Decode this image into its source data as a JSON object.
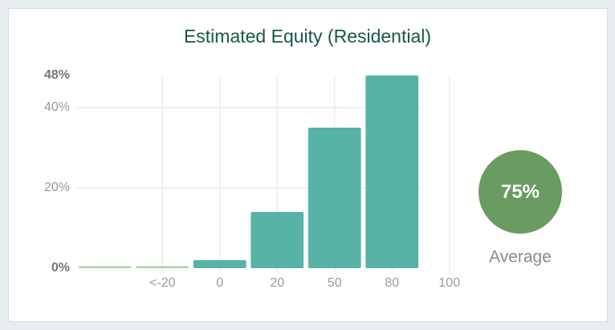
{
  "chart_data": {
    "type": "bar",
    "title": "Estimated Equity (Residential)",
    "categories": [
      null,
      "<-20",
      "0",
      "20",
      "50",
      "80",
      "100"
    ],
    "values": [
      0.5,
      0.5,
      2,
      14,
      35,
      48,
      null
    ],
    "colors": [
      "#a8d5a0",
      "#a8d5a0",
      "#56b3a5",
      "#56b3a5",
      "#56b3a5",
      "#56b3a5",
      "#56b3a5"
    ],
    "ylim": [
      0,
      48
    ],
    "yticks": [
      {
        "value": 0,
        "label": "0%"
      },
      {
        "value": 20,
        "label": "20%"
      },
      {
        "value": 40,
        "label": "40%"
      },
      {
        "value": 48,
        "label": "48%"
      }
    ],
    "grid": true
  },
  "summary": {
    "value": "75%",
    "caption": "Average",
    "color": "#6a9b61"
  }
}
